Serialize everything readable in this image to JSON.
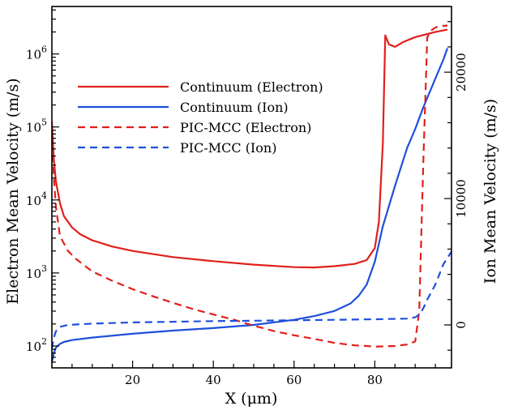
{
  "chart_data": {
    "type": "line",
    "title": "",
    "xlabel": "X (μm)",
    "ylabel_left": "Electron Mean Velocity (m/s)",
    "ylabel_right": "Ion Mean Velocity (m/s)",
    "xlim": [
      0,
      99
    ],
    "ylim_left_log10": [
      1.7,
      6.65
    ],
    "ylim_right": [
      -3400,
      25200
    ],
    "xticks": [
      {
        "value": 20,
        "label": "20"
      },
      {
        "value": 40,
        "label": "40"
      },
      {
        "value": 60,
        "label": "60"
      },
      {
        "value": 80,
        "label": "80"
      }
    ],
    "yticks_left": [
      {
        "exp": 2,
        "label": "10",
        "sup": "2"
      },
      {
        "exp": 3,
        "label": "10",
        "sup": "3"
      },
      {
        "exp": 4,
        "label": "10",
        "sup": "4"
      },
      {
        "exp": 5,
        "label": "10",
        "sup": "5"
      },
      {
        "exp": 6,
        "label": "10",
        "sup": "6"
      }
    ],
    "yticks_right": [
      {
        "value": 0,
        "label": "0"
      },
      {
        "value": 10000,
        "label": "10000"
      },
      {
        "value": 20000,
        "label": "20000"
      }
    ],
    "legend_position": "upper-left",
    "series": [
      {
        "name": "Continuum (Electron)",
        "color": "#e0201b",
        "dash": "solid",
        "axis": "left",
        "x": [
          0,
          0.5,
          1,
          2,
          3,
          5,
          7,
          10,
          15,
          20,
          30,
          40,
          50,
          60,
          65,
          70,
          75,
          78,
          80,
          81,
          82,
          82.6,
          83.5,
          85,
          87,
          90,
          95,
          98
        ],
        "y": [
          120000,
          35000,
          18000,
          9000,
          6000,
          4200,
          3400,
          2800,
          2300,
          2000,
          1650,
          1450,
          1300,
          1200,
          1190,
          1240,
          1330,
          1500,
          2200,
          5000,
          60000,
          1800000,
          1350000,
          1250000,
          1450000,
          1700000,
          2000000,
          2150000
        ]
      },
      {
        "name": "Continuum (Ion)",
        "color": "#1f4fdb",
        "dash": "solid",
        "axis": "right",
        "x": [
          0,
          0.5,
          1,
          2,
          3,
          5,
          10,
          20,
          30,
          40,
          50,
          60,
          65,
          70,
          74,
          76,
          78,
          80,
          82,
          85,
          88,
          90,
          92,
          95,
          97,
          98
        ],
        "y": [
          -3000,
          -2200,
          -1800,
          -1500,
          -1350,
          -1200,
          -1000,
          -700,
          -450,
          -250,
          0,
          400,
          700,
          1100,
          1700,
          2300,
          3200,
          5000,
          7800,
          11000,
          14000,
          15500,
          17200,
          19500,
          21000,
          21900
        ]
      },
      {
        "name": "PIC-MCC (Electron)",
        "color": "#e0201b",
        "dash": "dashed",
        "axis": "left",
        "x": [
          0,
          0.5,
          1,
          2,
          4,
          6,
          10,
          15,
          20,
          25,
          30,
          35,
          40,
          45,
          50,
          55,
          60,
          65,
          70,
          75,
          78,
          80,
          85,
          88,
          90,
          91,
          92,
          93,
          94,
          95,
          96,
          98
        ],
        "y": [
          90000,
          20000,
          8000,
          3200,
          2000,
          1550,
          1050,
          780,
          600,
          480,
          390,
          320,
          270,
          230,
          190,
          160,
          140,
          125,
          110,
          102,
          100,
          98,
          100,
          105,
          115,
          300,
          30000,
          1700000,
          2100000,
          2300000,
          2400000,
          2450000
        ]
      },
      {
        "name": "PIC-MCC (Ion)",
        "color": "#1f4fdb",
        "dash": "dashed",
        "axis": "right",
        "x": [
          0,
          0.5,
          1,
          2,
          4,
          10,
          20,
          30,
          40,
          50,
          60,
          70,
          80,
          88,
          90,
          91,
          92,
          93,
          95,
          97,
          99
        ],
        "y": [
          -1900,
          -1000,
          -500,
          -150,
          0,
          100,
          200,
          250,
          300,
          330,
          370,
          400,
          450,
          500,
          600,
          800,
          1300,
          2000,
          3200,
          4800,
          5800
        ]
      }
    ]
  }
}
